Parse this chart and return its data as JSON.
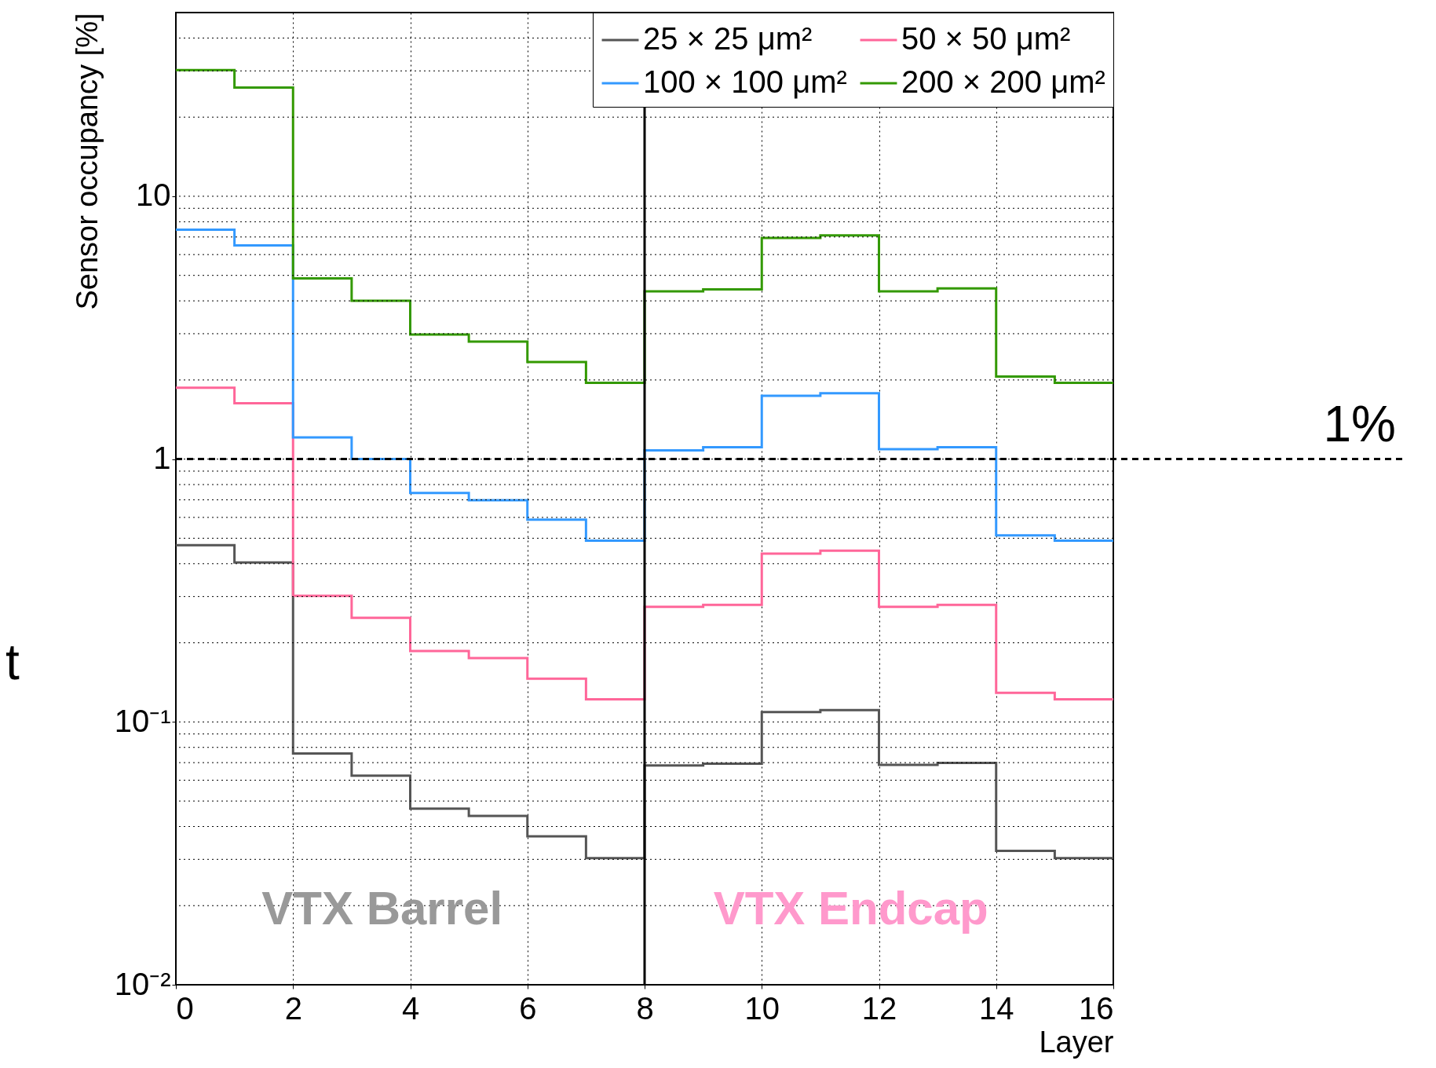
{
  "chart_data": {
    "type": "step",
    "xlabel": "Layer",
    "ylabel": "Sensor occupancy [%]",
    "x": [
      0,
      1,
      2,
      3,
      4,
      5,
      6,
      7,
      8,
      9,
      10,
      11,
      12,
      13,
      14,
      15,
      16
    ],
    "xlim": [
      0,
      16
    ],
    "xticks": [
      0,
      2,
      4,
      6,
      8,
      10,
      12,
      14,
      16
    ],
    "ylim": [
      0.01,
      50
    ],
    "yticks": [
      {
        "value": 0.01,
        "label": "10⁻²"
      },
      {
        "value": 0.1,
        "label": "10⁻¹"
      },
      1,
      10
    ],
    "log": true,
    "grid": true,
    "legend": "top right",
    "series": [
      {
        "name": "25 × 25 μm²",
        "color": "#555555",
        "values": [
          0.47,
          0.404,
          0.0758,
          0.0625,
          0.0468,
          0.0439,
          0.0367,
          0.0303,
          0.0683,
          0.0694,
          0.109,
          0.111,
          0.0687,
          0.0698,
          0.0323,
          0.0303,
          0.0303
        ]
      },
      {
        "name": "50 × 50 μm²",
        "color": "#ff6699",
        "values": [
          1.87,
          1.63,
          0.302,
          0.249,
          0.186,
          0.175,
          0.146,
          0.122,
          0.274,
          0.279,
          0.437,
          0.448,
          0.274,
          0.279,
          0.129,
          0.122,
          0.122
        ]
      },
      {
        "name": "100 × 100 μm²",
        "color": "#3399ff",
        "values": [
          7.46,
          6.5,
          1.21,
          1.0,
          0.743,
          0.697,
          0.588,
          0.489,
          1.08,
          1.11,
          1.74,
          1.78,
          1.09,
          1.11,
          0.513,
          0.489,
          0.489
        ]
      },
      {
        "name": "200 × 200 μm²",
        "color": "#339900",
        "values": [
          30.2,
          25.9,
          4.87,
          4.0,
          2.98,
          2.8,
          2.34,
          1.95,
          4.35,
          4.42,
          6.94,
          7.1,
          4.35,
          4.46,
          2.06,
          1.95,
          1.95
        ]
      }
    ],
    "ref_lines": [
      {
        "axis": "y",
        "value": 1,
        "label": "1%",
        "color": "#000000",
        "line_style": "dashed"
      },
      {
        "axis": "x",
        "value": 8,
        "color": "#000000",
        "line_style": "solid"
      }
    ],
    "annotations": [
      "VTX Barrel",
      "VTX Endcap",
      "t"
    ]
  }
}
